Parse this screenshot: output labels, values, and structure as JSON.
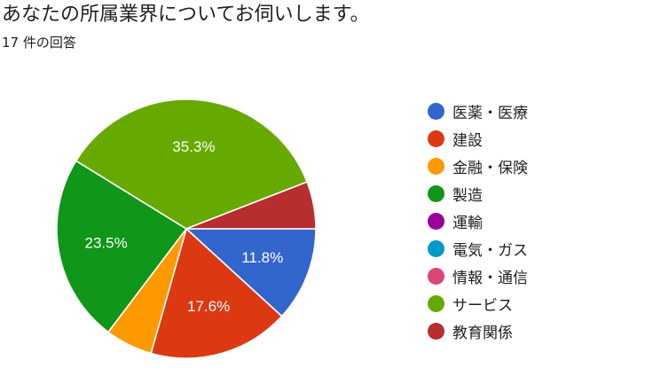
{
  "header": {
    "title": "あなたの所属業界についてお伺いします。",
    "response_count": "17 件の回答"
  },
  "chart_data": {
    "type": "pie",
    "title": "あなたの所属業界についてお伺いします。",
    "legend_position": "right",
    "start_angle": "3 o'clock, clockwise",
    "slices": [
      {
        "label": "医薬・医療",
        "value": 11.8,
        "color": "#3366cc",
        "display": "11.8%"
      },
      {
        "label": "建設",
        "value": 17.6,
        "color": "#dc3912",
        "display": "17.6%"
      },
      {
        "label": "金融・保険",
        "value": 5.9,
        "color": "#ff9900",
        "display": ""
      },
      {
        "label": "製造",
        "value": 23.5,
        "color": "#109618",
        "display": "23.5%"
      },
      {
        "label": "運輸",
        "value": 0,
        "color": "#990099",
        "display": ""
      },
      {
        "label": "電気・ガス",
        "value": 0,
        "color": "#0099c6",
        "display": ""
      },
      {
        "label": "情報・通信",
        "value": 0,
        "color": "#dd4477",
        "display": ""
      },
      {
        "label": "サービス",
        "value": 35.3,
        "color": "#66aa00",
        "display": "35.3%"
      },
      {
        "label": "教育関係",
        "value": 5.9,
        "color": "#b82e2e",
        "display": ""
      }
    ]
  }
}
